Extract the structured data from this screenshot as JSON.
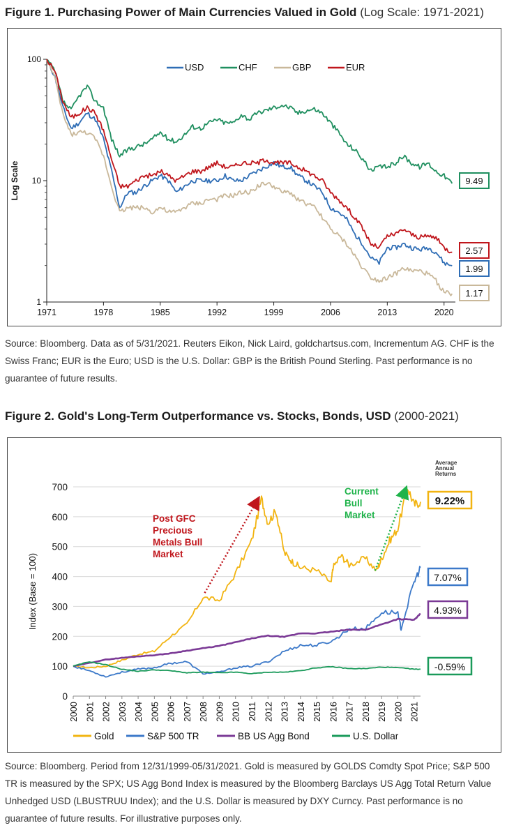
{
  "figure1": {
    "title_bold": "Figure 1. Purchasing Power of Main Currencies Valued in Gold",
    "title_range": "(Log Scale: 1971-2021)",
    "source": "Source: Bloomberg. Data as of 5/31/2021. Reuters Eikon, Nick Laird, goldchartsus.com, Incrementum AG. CHF is the Swiss Franc; EUR is the Euro; USD is the U.S. Dollar: GBP is the British Pound Sterling. Past performance is no guarantee of future results.",
    "chart_data": {
      "type": "line",
      "title": "Purchasing Power of Main Currencies Valued in Gold",
      "xlabel": "",
      "ylabel": "Log Scale",
      "yscale": "log",
      "ylim": [
        1,
        100
      ],
      "xlim": [
        1971,
        2021.4
      ],
      "x_ticks": [
        "1971",
        "1978",
        "1985",
        "1992",
        "1999",
        "2006",
        "2013",
        "2020"
      ],
      "y_ticks": [
        "100",
        "10",
        "1"
      ],
      "legend_position": "top-center",
      "series": [
        {
          "name": "USD",
          "color": "#2e6db5",
          "end_label": "1.99",
          "x": [
            1971,
            1972,
            1973,
            1974,
            1975,
            1976,
            1977,
            1978,
            1979,
            1980,
            1981,
            1982,
            1983,
            1984,
            1985,
            1986,
            1987,
            1988,
            1989,
            1990,
            1991,
            1992,
            1993,
            1994,
            1995,
            1996,
            1997,
            1998,
            1999,
            2000,
            2001,
            2002,
            2003,
            2004,
            2005,
            2006,
            2007,
            2008,
            2009,
            2010,
            2011,
            2012,
            2013,
            2014,
            2015,
            2016,
            2017,
            2018,
            2019,
            2020,
            2021
          ],
          "values": [
            100,
            72,
            40,
            27,
            30,
            36,
            32,
            22,
            12,
            6,
            8,
            8,
            9,
            10,
            11,
            10,
            8,
            9,
            10,
            10,
            10,
            10,
            11,
            10,
            10,
            11,
            12,
            13,
            14,
            13,
            13,
            11,
            10,
            9,
            8,
            6,
            5.5,
            4.8,
            3.6,
            3.0,
            2.3,
            2.1,
            2.8,
            2.8,
            3.0,
            2.8,
            2.7,
            2.8,
            2.6,
            2.1,
            1.99
          ]
        },
        {
          "name": "CHF",
          "color": "#1f8f5f",
          "end_label": "9.49",
          "x": [
            1971,
            1972,
            1973,
            1974,
            1975,
            1976,
            1977,
            1978,
            1979,
            1980,
            1981,
            1982,
            1983,
            1984,
            1985,
            1986,
            1987,
            1988,
            1989,
            1990,
            1991,
            1992,
            1993,
            1994,
            1995,
            1996,
            1997,
            1998,
            1999,
            2000,
            2001,
            2002,
            2003,
            2004,
            2005,
            2006,
            2007,
            2008,
            2009,
            2010,
            2011,
            2012,
            2013,
            2014,
            2015,
            2016,
            2017,
            2018,
            2019,
            2020,
            2021
          ],
          "values": [
            100,
            80,
            45,
            38,
            50,
            60,
            45,
            40,
            22,
            16,
            18,
            19,
            20,
            22,
            25,
            22,
            21,
            24,
            28,
            27,
            30,
            32,
            30,
            30,
            35,
            32,
            36,
            38,
            40,
            42,
            40,
            36,
            38,
            39,
            36,
            30,
            25,
            20,
            18,
            15,
            12,
            13,
            13,
            14,
            16,
            14,
            13,
            14,
            12,
            11,
            9.49
          ]
        },
        {
          "name": "GBP",
          "color": "#c9b89a",
          "end_label": "1.17",
          "x": [
            1971,
            1972,
            1973,
            1974,
            1975,
            1976,
            1977,
            1978,
            1979,
            1980,
            1981,
            1982,
            1983,
            1984,
            1985,
            1986,
            1987,
            1988,
            1989,
            1990,
            1991,
            1992,
            1993,
            1994,
            1995,
            1996,
            1997,
            1998,
            1999,
            2000,
            2001,
            2002,
            2003,
            2004,
            2005,
            2006,
            2007,
            2008,
            2009,
            2010,
            2011,
            2012,
            2013,
            2014,
            2015,
            2016,
            2017,
            2018,
            2019,
            2020,
            2021
          ],
          "values": [
            100,
            70,
            35,
            24,
            25,
            25,
            22,
            16,
            9,
            5.5,
            6,
            6,
            6,
            5.5,
            6,
            5.5,
            5.5,
            6,
            6.5,
            6.5,
            7,
            7,
            7.5,
            7.5,
            8,
            8,
            9,
            9.5,
            9,
            8,
            8,
            7,
            6.5,
            6,
            5,
            4,
            3.5,
            3,
            2.4,
            1.9,
            1.6,
            1.5,
            1.6,
            1.7,
            1.9,
            1.8,
            1.8,
            1.7,
            1.5,
            1.2,
            1.17
          ]
        },
        {
          "name": "EUR",
          "color": "#c0161c",
          "end_label": "2.57",
          "x": [
            1971,
            1972,
            1973,
            1974,
            1975,
            1976,
            1977,
            1978,
            1979,
            1980,
            1981,
            1982,
            1983,
            1984,
            1985,
            1986,
            1987,
            1988,
            1989,
            1990,
            1991,
            1992,
            1993,
            1994,
            1995,
            1996,
            1997,
            1998,
            1999,
            2000,
            2001,
            2002,
            2003,
            2004,
            2005,
            2006,
            2007,
            2008,
            2009,
            2010,
            2011,
            2012,
            2013,
            2014,
            2015,
            2016,
            2017,
            2018,
            2019,
            2020,
            2021
          ],
          "values": [
            100,
            80,
            45,
            33,
            36,
            40,
            36,
            26,
            15,
            9,
            9,
            10,
            11,
            11,
            12,
            11,
            10,
            11,
            12,
            12,
            13,
            14,
            13,
            13,
            14,
            14,
            14,
            15,
            14,
            14,
            14,
            13,
            12,
            11,
            10,
            8,
            7,
            6,
            5,
            4,
            3,
            2.8,
            3.5,
            3.6,
            4.0,
            3.6,
            3.4,
            3.5,
            3.4,
            2.8,
            2.57
          ]
        }
      ]
    }
  },
  "figure2": {
    "title_bold": "Figure 2. Gold's Long-Term Outperformance vs. Stocks, Bonds, USD",
    "title_range": "(2000-2021)",
    "source": "Source: Bloomberg. Period from 12/31/1999-05/31/2021. Gold is measured by GOLDS Comdty Spot Price; S&P 500 TR is measured by the SPX; US Agg Bond Index is measured by the Bloomberg Barclays US Agg Total Return Value Unhedged USD (LBUSTRUU Index); and the U.S. Dollar is measured by DXY Curncy. Past performance is no guarantee of future results. For illustrative purposes only.",
    "annotations": {
      "avg_returns_heading": [
        "Average",
        "Annual",
        "Returns"
      ],
      "post_gfc": [
        "Post GFC",
        "Precious",
        "Metals Bull",
        "Market"
      ],
      "current_bull": [
        "Current",
        "Bull",
        "Market"
      ]
    },
    "chart_data": {
      "type": "line",
      "title": "Gold's Long-Term Outperformance vs. Stocks, Bonds, USD",
      "xlabel": "",
      "ylabel": "Index (Base = 100)",
      "ylim": [
        0,
        700
      ],
      "xlim": [
        2000,
        2021.4
      ],
      "x_ticks": [
        "2000",
        "2001",
        "2002",
        "2003",
        "2004",
        "2005",
        "2006",
        "2007",
        "2008",
        "2009",
        "2010",
        "2011",
        "2012",
        "2013",
        "2014",
        "2015",
        "2016",
        "2017",
        "2018",
        "2019",
        "2020",
        "2021"
      ],
      "y_ticks": [
        "0",
        "100",
        "200",
        "300",
        "400",
        "500",
        "600",
        "700"
      ],
      "legend_position": "bottom",
      "series": [
        {
          "name": "Gold",
          "color": "#f2b411",
          "avg_annual_return": "9.22%",
          "x": [
            2000,
            2001,
            2002,
            2003,
            2004,
            2005,
            2006,
            2007,
            2008,
            2009,
            2010,
            2011,
            2011.6,
            2012,
            2012.5,
            2013,
            2013.5,
            2014,
            2015,
            2015.9,
            2016,
            2016.5,
            2017,
            2018,
            2018.7,
            2019,
            2019.5,
            2020,
            2020.6,
            2021,
            2021.4
          ],
          "values": [
            100,
            95,
            100,
            120,
            140,
            150,
            200,
            240,
            330,
            320,
            410,
            520,
            660,
            580,
            620,
            480,
            450,
            430,
            420,
            380,
            430,
            470,
            440,
            460,
            420,
            460,
            520,
            560,
            700,
            640,
            650
          ]
        },
        {
          "name": "S&P 500 TR",
          "color": "#3c79c9",
          "avg_annual_return": "7.07%",
          "x": [
            2000,
            2001,
            2002,
            2003,
            2004,
            2005,
            2006,
            2007,
            2008,
            2009,
            2010,
            2011,
            2012,
            2013,
            2014,
            2015,
            2016,
            2017,
            2018,
            2019,
            2020,
            2020.2,
            2021,
            2021.4
          ],
          "values": [
            100,
            85,
            65,
            80,
            90,
            95,
            110,
            115,
            75,
            80,
            95,
            100,
            115,
            150,
            170,
            170,
            185,
            225,
            225,
            280,
            280,
            225,
            380,
            430
          ]
        },
        {
          "name": "BB US Agg Bond",
          "color": "#7b3a96",
          "avg_annual_return": "4.93%",
          "x": [
            2000,
            2001,
            2002,
            2003,
            2004,
            2005,
            2006,
            2007,
            2008,
            2009,
            2010,
            2011,
            2012,
            2013,
            2014,
            2015,
            2016,
            2017,
            2018,
            2019,
            2020,
            2021,
            2021.4
          ],
          "values": [
            100,
            111,
            122,
            128,
            133,
            137,
            143,
            152,
            160,
            168,
            180,
            193,
            202,
            198,
            210,
            210,
            216,
            222,
            222,
            240,
            258,
            255,
            275
          ]
        },
        {
          "name": "U.S. Dollar",
          "color": "#1a9a5a",
          "avg_annual_return": "-0.59%",
          "x": [
            2000,
            2001,
            2002,
            2003,
            2004,
            2005,
            2006,
            2007,
            2008,
            2009,
            2010,
            2011,
            2012,
            2013,
            2014,
            2015,
            2016,
            2017,
            2018,
            2019,
            2020,
            2021,
            2021.4
          ],
          "values": [
            100,
            115,
            105,
            90,
            83,
            88,
            85,
            78,
            80,
            78,
            80,
            75,
            80,
            80,
            85,
            95,
            98,
            92,
            92,
            97,
            95,
            90,
            90
          ]
        }
      ]
    }
  }
}
